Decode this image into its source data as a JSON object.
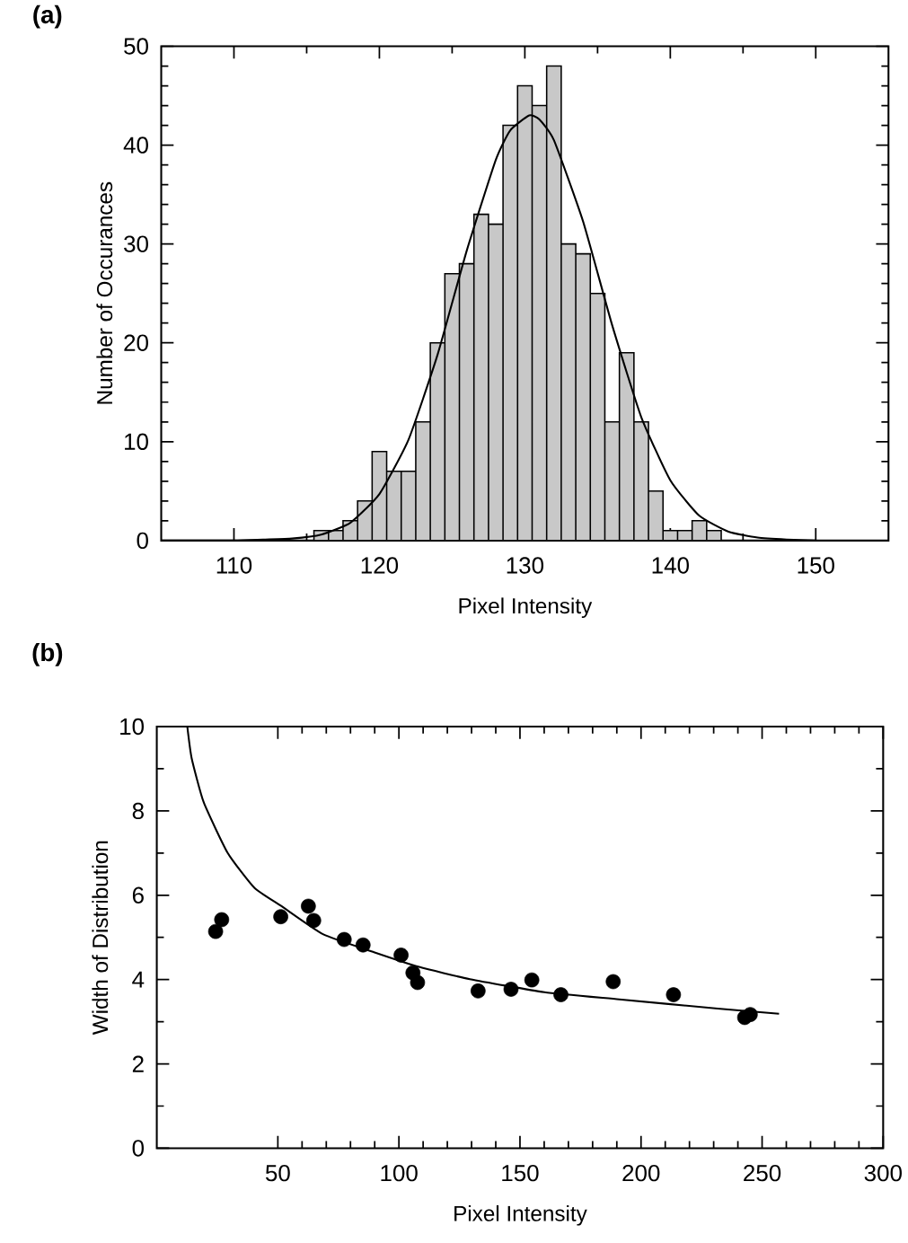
{
  "chart_data": [
    {
      "type": "histogram",
      "xlabel": "Pixel Intensity",
      "ylabel": "Number of Occurances",
      "annotations": [
        "(a)"
      ],
      "bins": [
        115.5,
        116.5,
        117.5,
        118.5,
        119.5,
        120.5,
        121.5,
        122.5,
        123.5,
        124.5,
        125.5,
        126.5,
        127.5,
        128.5,
        129.5,
        130.5,
        131.5,
        132.5,
        133.5,
        134.5,
        135.5,
        136.5,
        137.5,
        138.5,
        139.5,
        140.5,
        141.5,
        142.5,
        143.5
      ],
      "values": [
        1,
        1,
        2,
        4,
        9,
        7,
        7,
        12,
        20,
        27,
        28,
        33,
        32,
        42,
        46,
        44,
        48,
        30,
        29,
        25,
        12,
        19,
        12,
        5,
        1,
        1,
        2,
        1
      ],
      "color": "#c8c8c8",
      "series": [
        {
          "type": "line",
          "color": "#000000",
          "x": [
            105,
            110,
            112,
            114,
            116,
            118,
            120,
            122,
            124,
            126,
            128,
            129,
            130.3,
            131,
            132,
            134,
            136,
            138,
            140,
            142,
            144,
            146,
            148,
            150
          ],
          "values": [
            0,
            0,
            0.1,
            0.2,
            0.6,
            1.8,
            4.7,
            10.2,
            18.8,
            29.3,
            38.5,
            41.5,
            43,
            42.6,
            40.5,
            32.3,
            21.8,
            12.5,
            6.1,
            2.5,
            0.9,
            0.3,
            0.1,
            0
          ]
        }
      ],
      "xlim": [
        105,
        155
      ],
      "ylim": [
        0,
        50
      ],
      "xticks": [
        110,
        120,
        130,
        140,
        150
      ],
      "yticks": [
        0,
        10,
        20,
        30,
        40,
        50
      ]
    },
    {
      "type": "scatter",
      "xlabel": "Pixel Intensity",
      "ylabel": "Width of Distribution",
      "annotations": [
        "(b)"
      ],
      "series": [
        {
          "type": "scatter",
          "marker": "circle",
          "color": "#000000",
          "x": [
            24.3,
            26.8,
            51.2,
            62.6,
            64.8,
            77.4,
            85.2,
            100.9,
            105.8,
            107.7,
            132.7,
            146.3,
            154.9,
            166.9,
            188.5,
            213.4,
            242.8,
            245.1
          ],
          "values": [
            5.14,
            5.42,
            5.49,
            5.74,
            5.4,
            4.95,
            4.82,
            4.58,
            4.16,
            3.93,
            3.73,
            3.77,
            3.99,
            3.64,
            3.95,
            3.64,
            3.1,
            3.17
          ]
        },
        {
          "type": "line",
          "marker": "none",
          "color": "#000000",
          "x": [
            12.6,
            14.4,
            19.4,
            29.3,
            40.4,
            51.5,
            68.8,
            89.7,
            108.3,
            129.3,
            160.1,
            191,
            231.7,
            257
          ],
          "values": [
            10,
            9.25,
            8.2,
            7.0,
            6.17,
            5.74,
            5.07,
            4.65,
            4.3,
            4.01,
            3.7,
            3.53,
            3.31,
            3.19
          ]
        }
      ],
      "xlim": [
        0,
        300
      ],
      "ylim": [
        0,
        10
      ],
      "xticks": [
        50,
        100,
        150,
        200,
        250,
        300
      ],
      "yticks": [
        0,
        2,
        4,
        6,
        8,
        10
      ]
    }
  ]
}
